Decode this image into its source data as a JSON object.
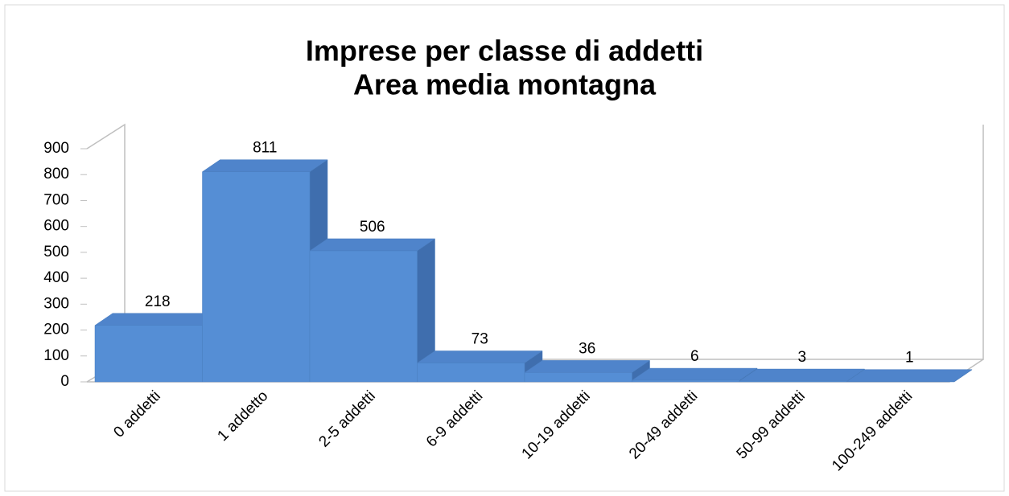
{
  "chart_data": {
    "type": "bar3d",
    "title": "Imprese per classe di addetti",
    "subtitle": "Area media montagna",
    "categories": [
      "0 addetti",
      "1 addetto",
      "2-5 addetti",
      "6-9 addetti",
      "10-19 addetti",
      "20-49 addetti",
      "50-99 addetti",
      "100-249 addetti"
    ],
    "values": [
      218,
      811,
      506,
      73,
      36,
      6,
      3,
      1
    ],
    "color": "#558ed5",
    "ylim": [
      0,
      900
    ],
    "yticks": [
      0,
      100,
      200,
      300,
      400,
      500,
      600,
      700,
      800,
      900
    ]
  }
}
